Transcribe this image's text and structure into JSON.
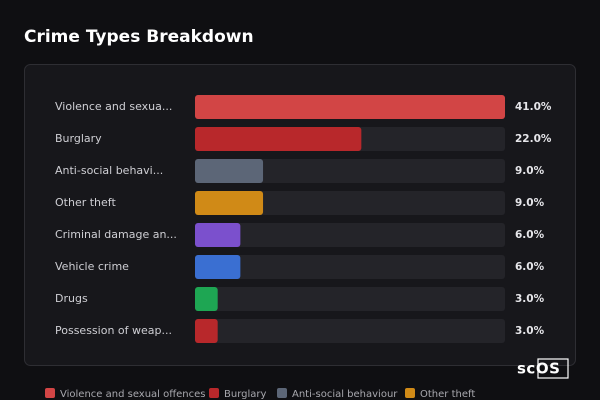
{
  "chart_data": {
    "type": "hbar",
    "title": "Crime Types Breakdown",
    "categories": [
      "Violence and sexua...",
      "Burglary",
      "Anti-social behavi...",
      "Other theft",
      "Criminal damage an...",
      "Vehicle crime",
      "Drugs",
      "Possession of weap..."
    ],
    "values": [
      41,
      22,
      9,
      9,
      6,
      6,
      3,
      3
    ],
    "value_labels": [
      "41.0%",
      "22.0%",
      "9.0%",
      "9.0%",
      "6.0%",
      "6.0%",
      "3.0%",
      "3.0%"
    ],
    "colors": [
      "#d24545",
      "#b8282b",
      "#5c6677",
      "#d08a17",
      "#7b50cd",
      "#3a6fd2",
      "#1ea653",
      "#b8282b"
    ],
    "xlim": [
      0,
      41
    ],
    "legend": [
      "Violence and sexual offences",
      "Burglary",
      "Anti-social behaviour",
      "Other theft"
    ]
  },
  "logo": "scOS"
}
